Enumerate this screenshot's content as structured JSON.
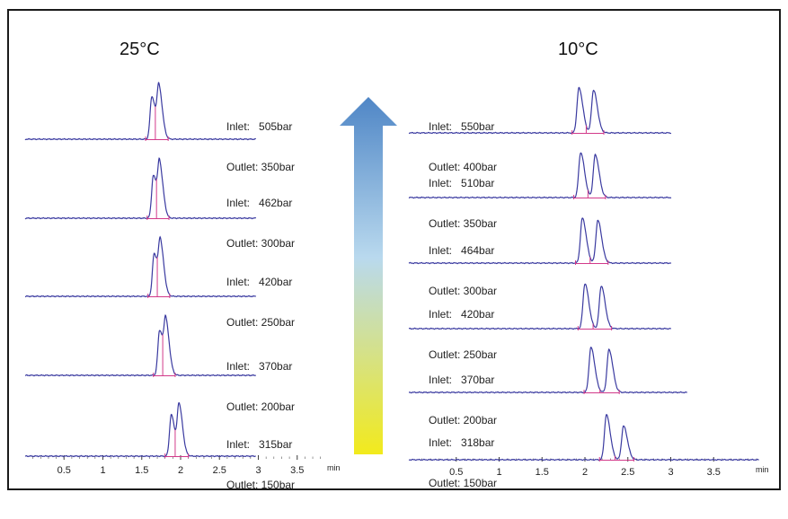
{
  "chart_data": [
    {
      "type": "line",
      "title": "25°C",
      "x_unit": "min",
      "x_ticks": [
        0.5,
        1,
        1.5,
        2,
        2.5,
        3,
        3.5
      ],
      "xlim": [
        0,
        3.9
      ],
      "traces": [
        {
          "inlet": "Inlet:   505bar",
          "outlet": "Outlet: 350bar",
          "peaks": [
            {
              "rt": 1.63,
              "height": 0.85
            },
            {
              "rt": 1.72,
              "height": 1.0
            }
          ]
        },
        {
          "inlet": "Inlet:   462bar",
          "outlet": "Outlet: 300bar",
          "peaks": [
            {
              "rt": 1.65,
              "height": 0.85
            },
            {
              "rt": 1.73,
              "height": 1.0
            }
          ]
        },
        {
          "inlet": "Inlet:   420bar",
          "outlet": "Outlet: 250bar",
          "peaks": [
            {
              "rt": 1.66,
              "height": 0.85
            },
            {
              "rt": 1.74,
              "height": 1.0
            }
          ]
        },
        {
          "inlet": "Inlet:   370bar",
          "outlet": "Outlet: 200bar",
          "peaks": [
            {
              "rt": 1.73,
              "height": 0.9
            },
            {
              "rt": 1.81,
              "height": 1.0
            }
          ]
        },
        {
          "inlet": "Inlet:   315bar",
          "outlet": "Outlet: 150bar",
          "peaks": [
            {
              "rt": 1.88,
              "height": 0.82
            },
            {
              "rt": 1.98,
              "height": 1.0
            }
          ]
        }
      ]
    },
    {
      "type": "line",
      "title": "10°C",
      "x_unit": "min",
      "x_ticks": [
        0.5,
        1,
        1.5,
        2,
        2.5,
        3,
        3.5
      ],
      "xlim": [
        0,
        4.1
      ],
      "traces": [
        {
          "inlet": "Inlet:   550bar",
          "outlet": "Outlet: 400bar",
          "peaks": [
            {
              "rt": 1.93,
              "height": 1.0
            },
            {
              "rt": 2.1,
              "height": 0.95
            }
          ]
        },
        {
          "inlet": "Inlet:   510bar",
          "outlet": "Outlet: 350bar",
          "peaks": [
            {
              "rt": 1.95,
              "height": 1.0
            },
            {
              "rt": 2.12,
              "height": 0.95
            }
          ]
        },
        {
          "inlet": "Inlet:   464bar",
          "outlet": "Outlet: 300bar",
          "peaks": [
            {
              "rt": 1.97,
              "height": 1.0
            },
            {
              "rt": 2.15,
              "height": 0.95
            }
          ]
        },
        {
          "inlet": "Inlet:   420bar",
          "outlet": "Outlet: 250bar",
          "peaks": [
            {
              "rt": 2.0,
              "height": 1.0
            },
            {
              "rt": 2.19,
              "height": 0.95
            }
          ]
        },
        {
          "inlet": "Inlet:   370bar",
          "outlet": "Outlet: 200bar",
          "peaks": [
            {
              "rt": 2.07,
              "height": 1.0
            },
            {
              "rt": 2.28,
              "height": 0.95
            }
          ]
        },
        {
          "inlet": "Inlet:   318bar",
          "outlet": "Outlet: 150bar",
          "peaks": [
            {
              "rt": 2.25,
              "height": 1.0
            },
            {
              "rt": 2.45,
              "height": 0.75
            }
          ]
        }
      ]
    }
  ],
  "colors": {
    "trace": "#3a3aa0",
    "integration_mark": "#d23a8a",
    "arrow_top": "#4f86c6",
    "arrow_mid": "#b9d9ee",
    "arrow_bottom": "#f2ea1c"
  }
}
